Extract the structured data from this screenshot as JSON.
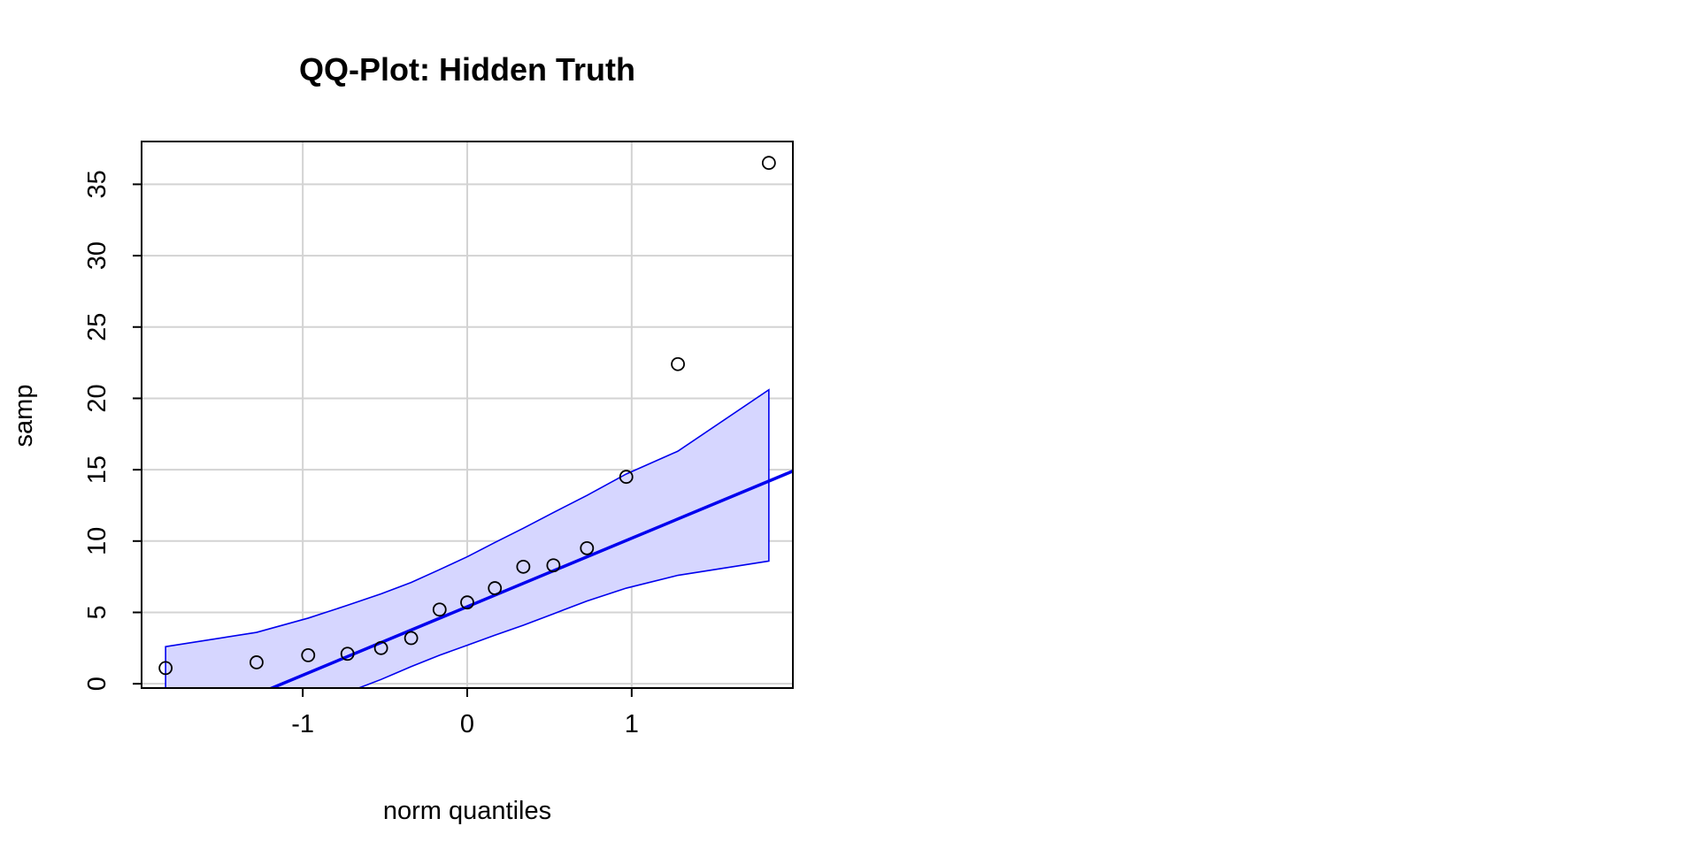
{
  "chart_data": {
    "type": "scatter",
    "title": "QQ-Plot: Hidden Truth",
    "xlabel": "norm quantiles",
    "ylabel": "samp",
    "xlim": [
      -1.98,
      1.98
    ],
    "ylim": [
      -0.3,
      38.0
    ],
    "x_ticks": [
      -1,
      0,
      1
    ],
    "x_tick_labels": [
      "-1",
      "0",
      "1"
    ],
    "y_ticks": [
      0,
      5,
      10,
      15,
      20,
      25,
      30,
      35
    ],
    "y_tick_labels": [
      "0",
      "5",
      "10",
      "15",
      "20",
      "25",
      "30",
      "35"
    ],
    "grid": true,
    "grid_color": "#d3d3d3",
    "line_color": "#0000ee",
    "band_fill": "#d6d6ff",
    "point_color": "#000000",
    "points": {
      "x": [
        -1.834,
        -1.281,
        -0.967,
        -0.728,
        -0.524,
        -0.341,
        -0.168,
        0.0,
        0.168,
        0.341,
        0.524,
        0.728,
        0.967,
        1.281,
        1.834
      ],
      "y": [
        1.1,
        1.5,
        2.0,
        2.1,
        2.5,
        3.2,
        5.2,
        5.7,
        6.7,
        8.2,
        8.3,
        9.5,
        14.5,
        22.4,
        36.5
      ]
    },
    "reference_line": {
      "intercept": 5.4,
      "slope": 4.8
    },
    "confidence_band": {
      "x": [
        -1.834,
        -1.281,
        -0.967,
        -0.728,
        -0.524,
        -0.341,
        -0.168,
        0.0,
        0.168,
        0.341,
        0.524,
        0.728,
        0.967,
        1.281,
        1.834
      ],
      "upper": [
        2.6,
        3.6,
        4.6,
        5.5,
        6.3,
        7.1,
        8.0,
        8.9,
        9.9,
        10.9,
        12.0,
        13.2,
        14.7,
        16.3,
        20.6
      ],
      "lower": [
        -6.0,
        -3.0,
        -1.6,
        -0.6,
        0.3,
        1.2,
        2.0,
        2.7,
        3.4,
        4.1,
        4.9,
        5.8,
        6.7,
        7.6,
        8.6
      ]
    }
  }
}
